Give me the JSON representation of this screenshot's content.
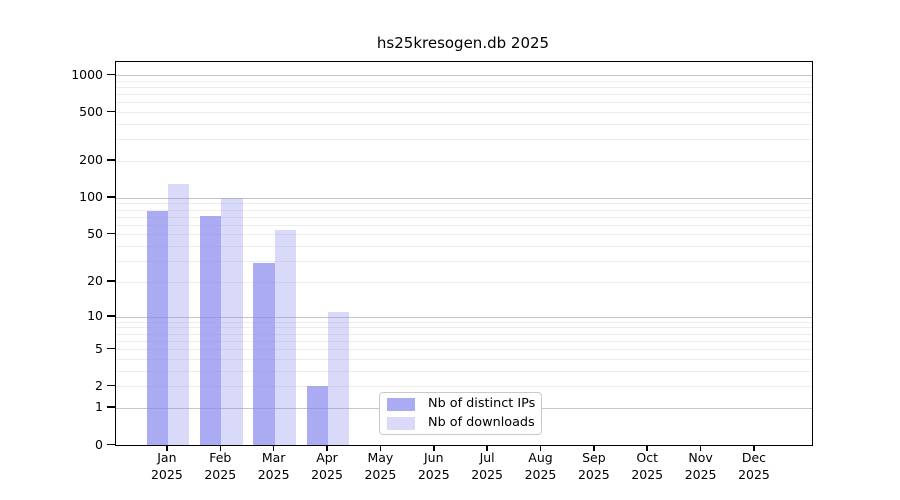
{
  "chart_data": {
    "type": "bar",
    "title": "hs25kresogen.db 2025",
    "categories": [
      "Jan",
      "Feb",
      "Mar",
      "Apr",
      "May",
      "Jun",
      "Jul",
      "Aug",
      "Sep",
      "Oct",
      "Nov",
      "Dec"
    ],
    "year_label": "2025",
    "series": [
      {
        "name": "Nb of distinct IPs",
        "color": "rgba(136,136,238,0.70)",
        "values": [
          78,
          71,
          29,
          2,
          0,
          0,
          0,
          0,
          0,
          0,
          0,
          0
        ]
      },
      {
        "name": "Nb of downloads",
        "color": "rgba(136,136,238,0.32)",
        "values": [
          130,
          100,
          54,
          11,
          0,
          0,
          0,
          0,
          0,
          0,
          0,
          0
        ]
      }
    ],
    "yscale": "log1p",
    "yticks": [
      0,
      1,
      2,
      5,
      10,
      20,
      50,
      100,
      200,
      500,
      1000
    ],
    "major_gridlines": [
      1,
      10,
      100,
      1000
    ],
    "ylim": [
      0,
      1000
    ],
    "xlabel": "",
    "ylabel": "",
    "grid": true,
    "legend_position": "lower center"
  },
  "colors": {
    "grid_major": "#c6c6c6",
    "grid_minor": "#ededed",
    "axis": "#000000",
    "background": "#ffffff"
  }
}
